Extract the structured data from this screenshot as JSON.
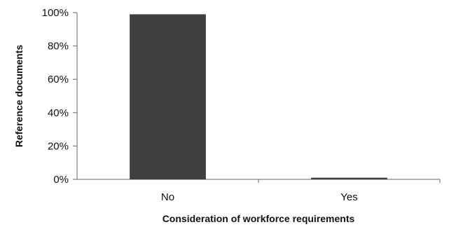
{
  "chart_data": {
    "type": "bar",
    "categories": [
      "No",
      "Yes"
    ],
    "values": [
      99,
      1
    ],
    "title": "",
    "xlabel": "Consideration of workforce requirements",
    "ylabel": "Reference documents",
    "ylim": [
      0,
      100
    ],
    "yticks": [
      0,
      20,
      40,
      60,
      80,
      100
    ],
    "ytick_labels": [
      "0%",
      "20%",
      "40%",
      "60%",
      "80%",
      "100%"
    ],
    "bar_color": "#3f3f3f",
    "axis_color": "#7f7f7f",
    "grid": false,
    "legend": "none"
  }
}
